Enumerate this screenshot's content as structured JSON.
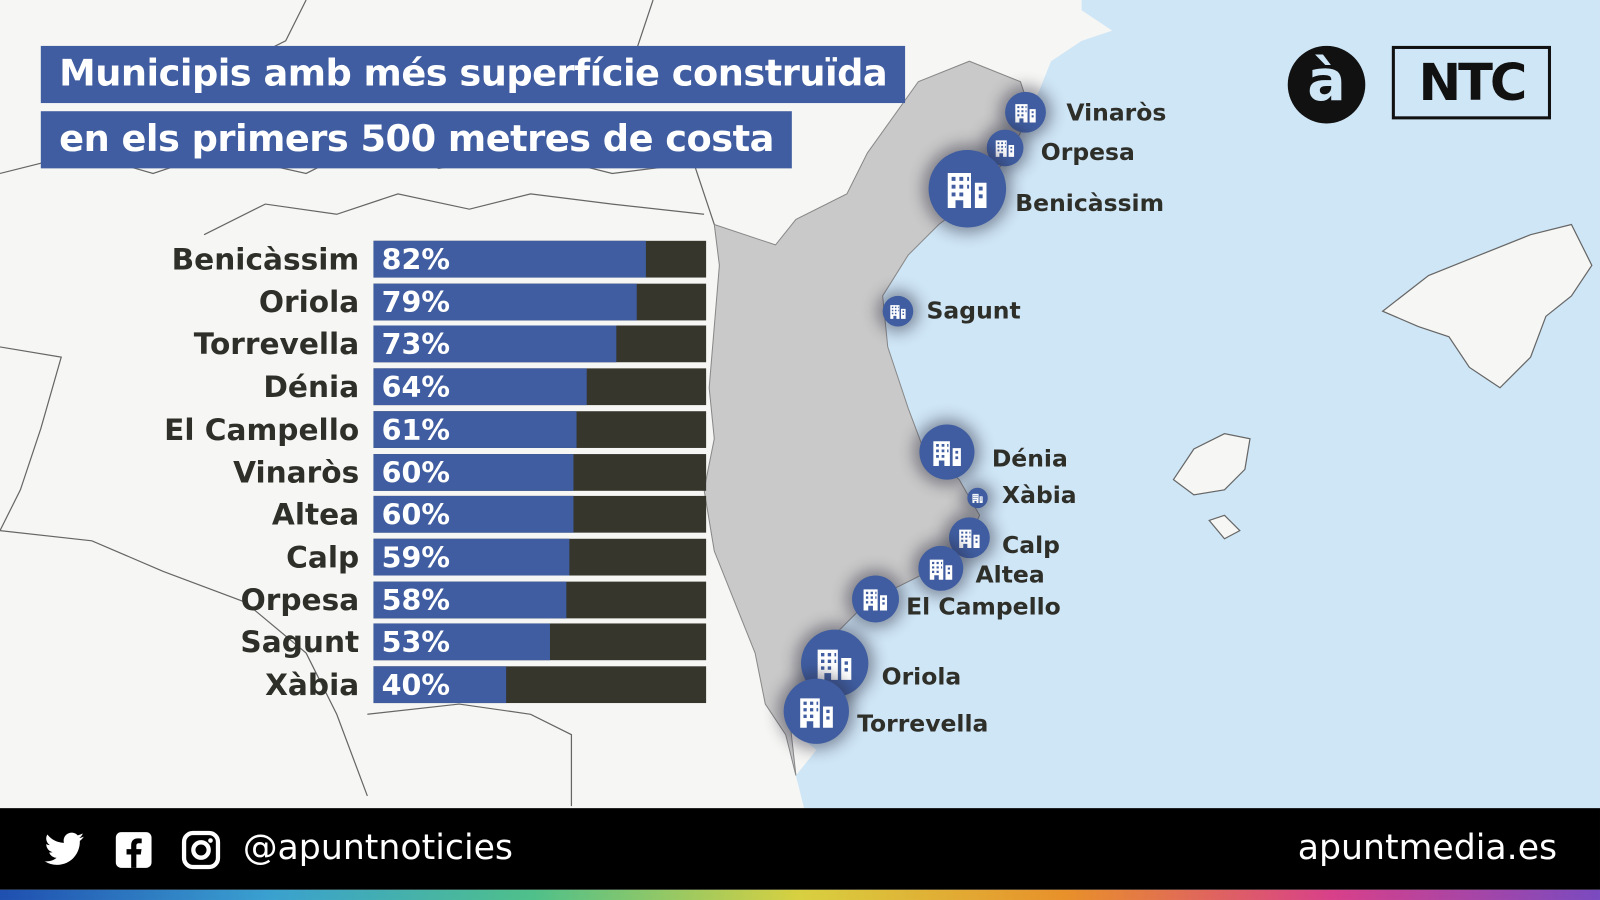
{
  "title": {
    "line1": "Municipis amb més superfície construïda",
    "line2": "en els primers 500 metres de costa"
  },
  "logos": {
    "a_punt": "à",
    "ntc": "NTC"
  },
  "colors": {
    "bar_fill": "#3f5da0",
    "bar_rest": "#36362c",
    "sea": "#cfe6f6",
    "land": "#f6f6f4",
    "region": "#c9c9c9"
  },
  "chart_data": {
    "type": "bar",
    "orientation": "horizontal",
    "categories": [
      "Benicàssim",
      "Oriola",
      "Torrevella",
      "Dénia",
      "El Campello",
      "Vinaròs",
      "Altea",
      "Calp",
      "Orpesa",
      "Sagunt",
      "Xàbia"
    ],
    "values": [
      82,
      79,
      73,
      64,
      61,
      60,
      60,
      59,
      58,
      53,
      40
    ],
    "value_labels": [
      "82%",
      "79%",
      "73%",
      "64%",
      "61%",
      "60%",
      "60%",
      "59%",
      "58%",
      "53%",
      "40%"
    ],
    "unit": "%",
    "xlim": [
      0,
      100
    ]
  },
  "map_markers": [
    {
      "name": "Vinaròs",
      "value": 60
    },
    {
      "name": "Orpesa",
      "value": 58
    },
    {
      "name": "Benicàssim",
      "value": 82
    },
    {
      "name": "Sagunt",
      "value": 53
    },
    {
      "name": "Dénia",
      "value": 64
    },
    {
      "name": "Xàbia",
      "value": 40
    },
    {
      "name": "Calp",
      "value": 59
    },
    {
      "name": "Altea",
      "value": 60
    },
    {
      "name": "El Campello",
      "value": 61
    },
    {
      "name": "Oriola",
      "value": 79
    },
    {
      "name": "Torrevella",
      "value": 73
    }
  ],
  "footer": {
    "icons": [
      "twitter-icon",
      "facebook-icon",
      "instagram-icon"
    ],
    "handle": "@apuntnoticies",
    "website": "apuntmedia.es"
  }
}
